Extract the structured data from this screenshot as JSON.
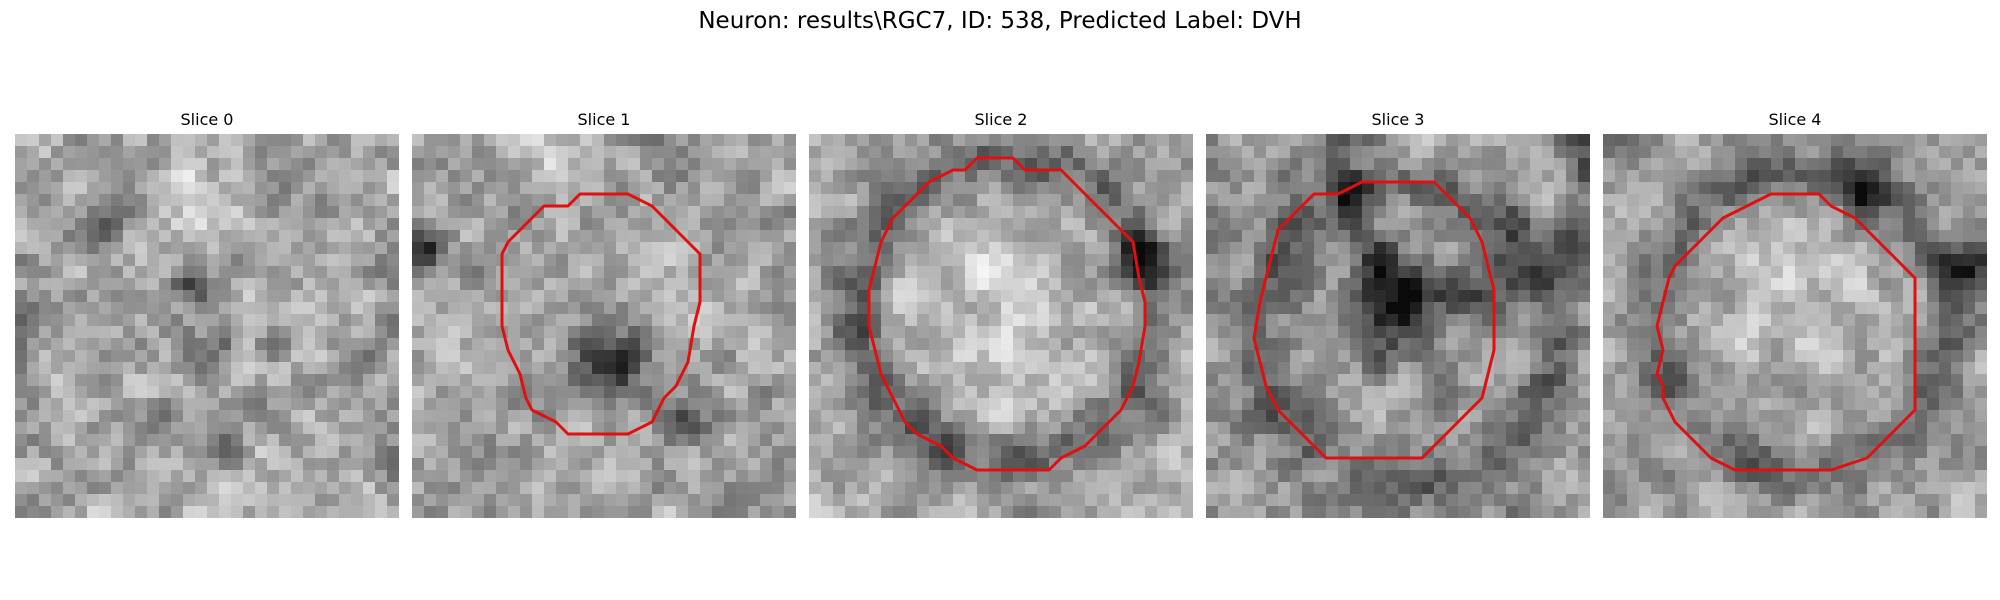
{
  "figure": {
    "title": "Neuron: results\\RGC7, ID: 538, Predicted Label: DVH"
  },
  "contour_color": "#e01010",
  "panels": [
    {
      "title": "Slice 0",
      "has_contour": false
    },
    {
      "title": "Slice 1",
      "has_contour": true
    },
    {
      "title": "Slice 2",
      "has_contour": true
    },
    {
      "title": "Slice 3",
      "has_contour": true
    },
    {
      "title": "Slice 4",
      "has_contour": true
    }
  ]
}
